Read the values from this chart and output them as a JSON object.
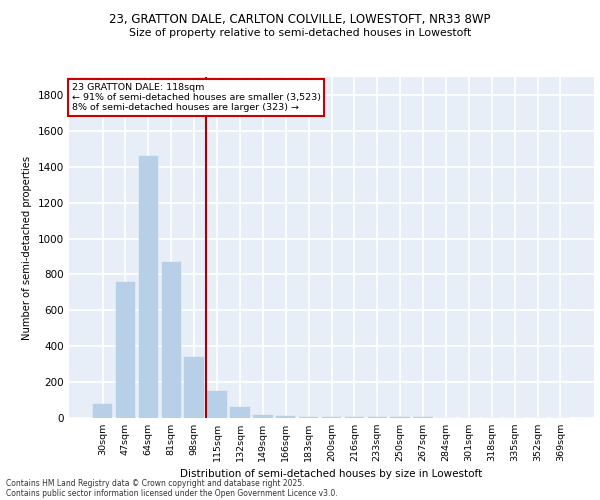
{
  "title_line1": "23, GRATTON DALE, CARLTON COLVILLE, LOWESTOFT, NR33 8WP",
  "title_line2": "Size of property relative to semi-detached houses in Lowestoft",
  "xlabel": "Distribution of semi-detached houses by size in Lowestoft",
  "ylabel": "Number of semi-detached properties",
  "categories": [
    "30sqm",
    "47sqm",
    "64sqm",
    "81sqm",
    "98sqm",
    "115sqm",
    "132sqm",
    "149sqm",
    "166sqm",
    "183sqm",
    "200sqm",
    "216sqm",
    "233sqm",
    "250sqm",
    "267sqm",
    "284sqm",
    "301sqm",
    "318sqm",
    "335sqm",
    "352sqm",
    "369sqm"
  ],
  "values": [
    75,
    760,
    1460,
    870,
    340,
    150,
    60,
    15,
    8,
    4,
    3,
    2,
    1,
    1,
    1,
    0,
    0,
    0,
    0,
    0,
    0
  ],
  "bar_color": "#b8cfe8",
  "vline_index": 5,
  "vline_color": "#aa0000",
  "subject_line": "23 GRATTON DALE: 118sqm",
  "annotation_line1": "← 91% of semi-detached houses are smaller (3,523)",
  "annotation_line2": "8% of semi-detached houses are larger (323) →",
  "annotation_box_edgecolor": "#cc0000",
  "ylim": [
    0,
    1900
  ],
  "yticks": [
    0,
    200,
    400,
    600,
    800,
    1000,
    1200,
    1400,
    1600,
    1800
  ],
  "footer_line1": "Contains HM Land Registry data © Crown copyright and database right 2025.",
  "footer_line2": "Contains public sector information licensed under the Open Government Licence v3.0.",
  "background_color": "#e8eef8",
  "grid_color": "#ffffff"
}
